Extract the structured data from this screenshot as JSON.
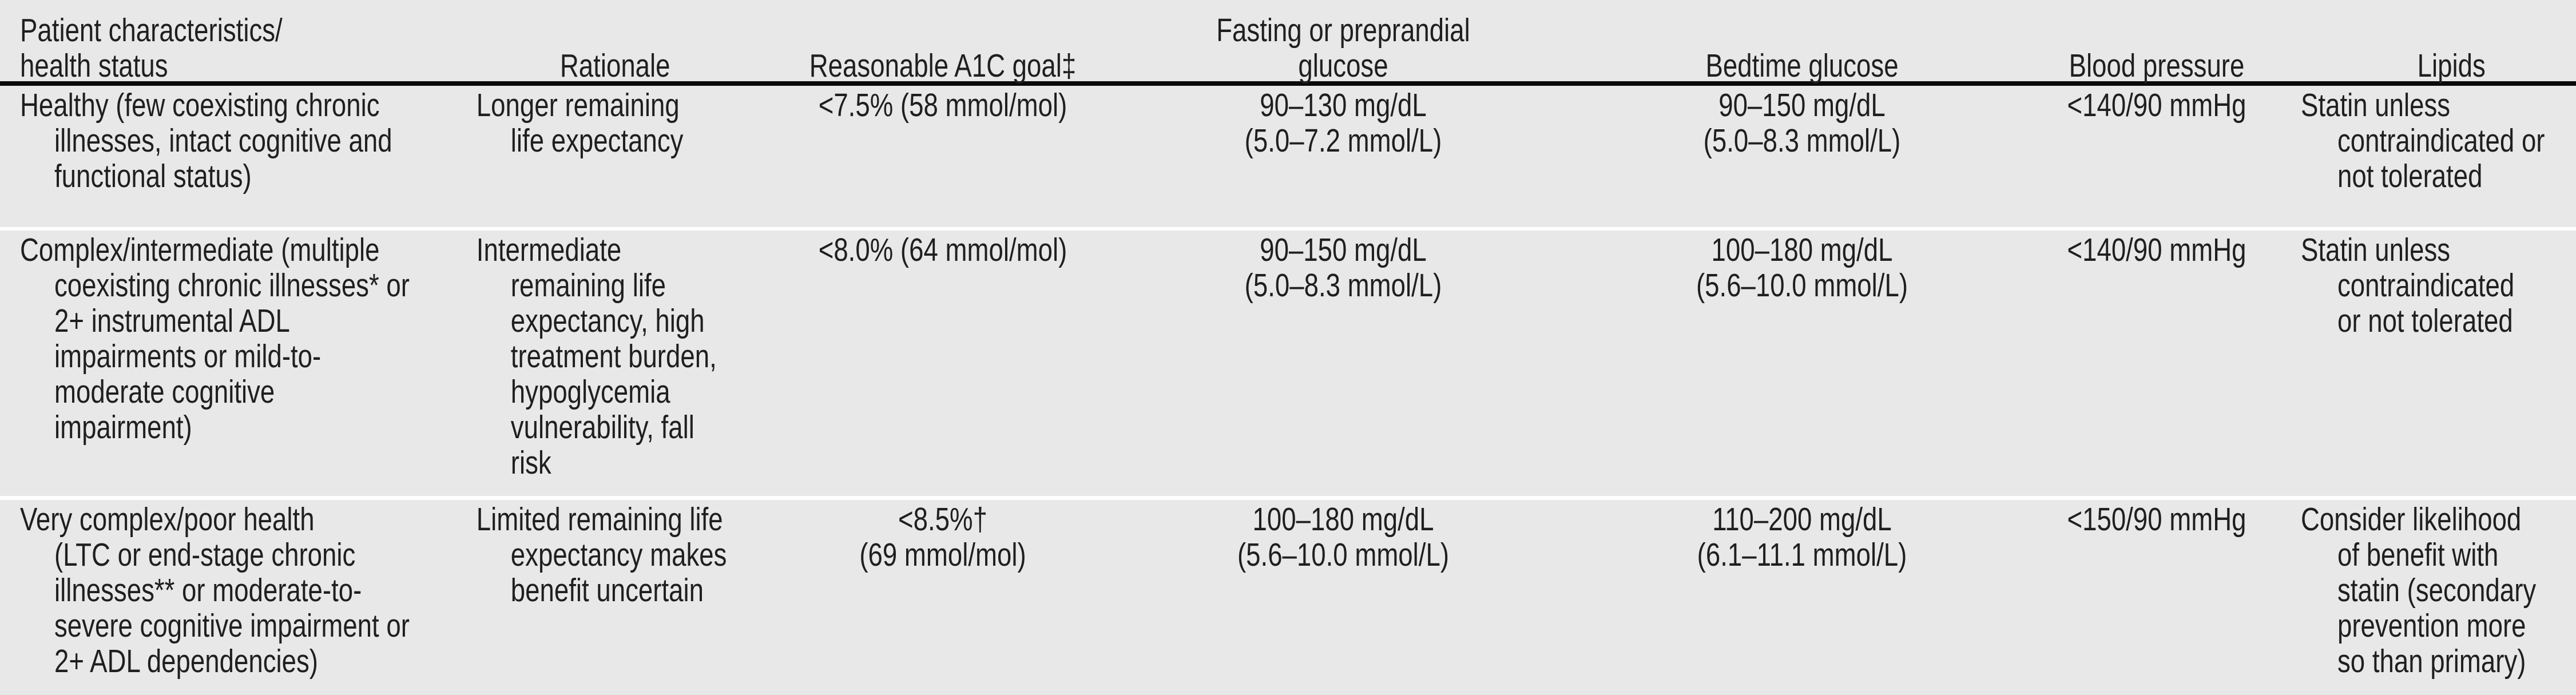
{
  "colors": {
    "row_background": "#e8e8e8",
    "separator": "#ffffff",
    "header_rule": "#0a0a0a",
    "text": "#1f1f1f"
  },
  "table": {
    "headers": [
      {
        "id": "patient",
        "label": "Patient characteristics/\nhealth status"
      },
      {
        "id": "rationale",
        "label": "Rationale"
      },
      {
        "id": "a1c",
        "label": "Reasonable A1C goal‡"
      },
      {
        "id": "fasting",
        "label": "Fasting or preprandial\nglucose"
      },
      {
        "id": "bedtime",
        "label": "Bedtime glucose"
      },
      {
        "id": "bp",
        "label": "Blood pressure"
      },
      {
        "id": "lipids",
        "label": "Lipids"
      }
    ],
    "rows": [
      {
        "patient": "Healthy (few coexisting chronic\nillnesses, intact cognitive and\nfunctional status)",
        "rationale": "Longer remaining\nlife expectancy",
        "a1c": "<7.5% (58 mmol/mol)",
        "fasting": "90–130 mg/dL\n(5.0–7.2 mmol/L)",
        "bedtime": "90–150 mg/dL\n(5.0–8.3 mmol/L)",
        "bp": "<140/90 mmHg",
        "lipids": "Statin unless\ncontraindicated or\nnot tolerated"
      },
      {
        "patient": "Complex/intermediate (multiple\ncoexisting chronic illnesses* or\n2+ instrumental ADL\nimpairments or mild-to-\nmoderate cognitive\nimpairment)",
        "rationale": "Intermediate\nremaining life\nexpectancy, high\ntreatment burden,\nhypoglycemia\nvulnerability, fall\nrisk",
        "a1c": "<8.0% (64 mmol/mol)",
        "fasting": "90–150 mg/dL\n(5.0–8.3 mmol/L)",
        "bedtime": "100–180 mg/dL\n(5.6–10.0 mmol/L)",
        "bp": "<140/90 mmHg",
        "lipids": "Statin unless\ncontraindicated\nor not tolerated"
      },
      {
        "patient": "Very complex/poor health\n(LTC or end-stage chronic\nillnesses** or moderate-to-\nsevere cognitive impairment or\n2+ ADL dependencies)",
        "rationale": "Limited remaining life\nexpectancy makes\nbenefit uncertain",
        "a1c": "<8.5%†\n(69 mmol/mol)",
        "fasting": "100–180 mg/dL\n(5.6–10.0 mmol/L)",
        "bedtime": "110–200 mg/dL\n(6.1–11.1 mmol/L)",
        "bp": "<150/90 mmHg",
        "lipids": "Consider likelihood\nof benefit with\nstatin (secondary\nprevention more\nso than primary)"
      }
    ]
  }
}
